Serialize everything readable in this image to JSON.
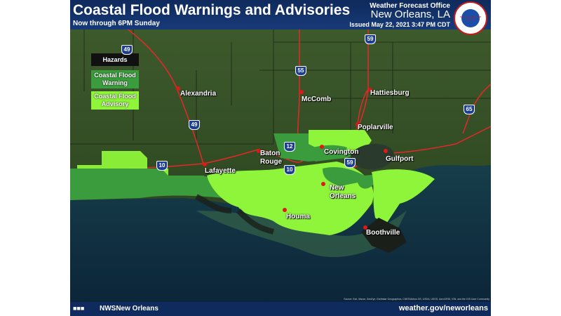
{
  "header": {
    "title": "Coastal Flood Warnings and Advisories",
    "subtitle": "Now through 6PM Sunday",
    "office": "Weather Forecast Office",
    "location": "New Orleans, LA",
    "issued": "Issued May 22, 2021 3:47 PM CDT",
    "logo": "NATIONAL WEATHER SERVICE"
  },
  "legend": {
    "title": "Hazards",
    "items": [
      {
        "label": "Coastal Flood Warning",
        "color": "#3a9c3c"
      },
      {
        "label": "Coastal Flood Advisory",
        "color": "#8ef53a"
      }
    ]
  },
  "cities": [
    "Alexandria",
    "McComb",
    "Hattiesburg",
    "Poplarville",
    "Covington",
    "Baton Rouge",
    "Lafayette",
    "Gulfport",
    "New Orleans",
    "Houma",
    "Boothville"
  ],
  "highways": [
    "49",
    "55",
    "59",
    "49",
    "12",
    "10",
    "10",
    "59",
    "65"
  ],
  "source": "Source: Esri, Maxar, GeoEye, Earthstar Geographics, CNES/Airbus DS, USDA, USGS, AeroGRID, IGN, and the GIS User Community",
  "footer": {
    "social": "NWSNew Orleans",
    "website": "weather.gov/neworleans"
  }
}
